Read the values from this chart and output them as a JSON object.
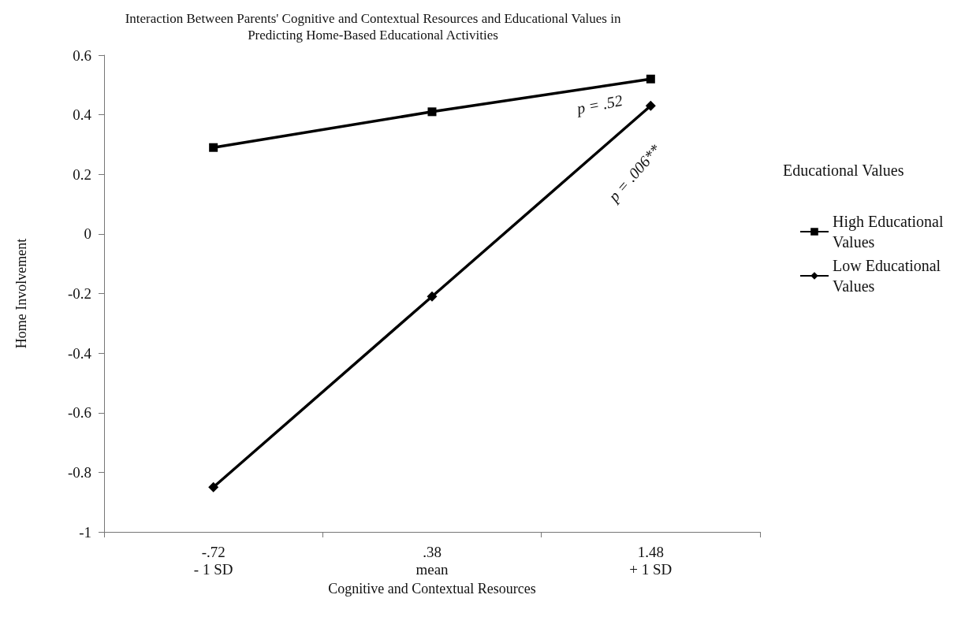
{
  "chart_data": {
    "type": "line",
    "title": "Interaction Between Parents' Cognitive and Contextual Resources and Educational Values in\nPredicting Home-Based Educational Activities",
    "xlabel": "Cognitive and Contextual Resources",
    "ylabel": "Home Involvement",
    "categories": [
      "-.72\n- 1 SD",
      ".38\nmean",
      "1.48\n+ 1 SD"
    ],
    "series": [
      {
        "name": "High Educational Values",
        "color": "#000000",
        "marker": "square",
        "values": [
          0.29,
          0.41,
          0.52
        ]
      },
      {
        "name": "Low Educational Values",
        "color": "#000000",
        "marker": "diamond",
        "values": [
          -0.85,
          -0.21,
          0.43
        ]
      }
    ],
    "ylim": [
      -1,
      0.6
    ],
    "yticks": [
      -1,
      -0.8,
      -0.6,
      -0.4,
      -0.2,
      0,
      0.2,
      0.4,
      0.6
    ],
    "grid": false,
    "legend": "right",
    "legend_title": "Educational Values",
    "line_style": "solid",
    "annotations": [
      "p = .52",
      "p = .006**"
    ]
  }
}
